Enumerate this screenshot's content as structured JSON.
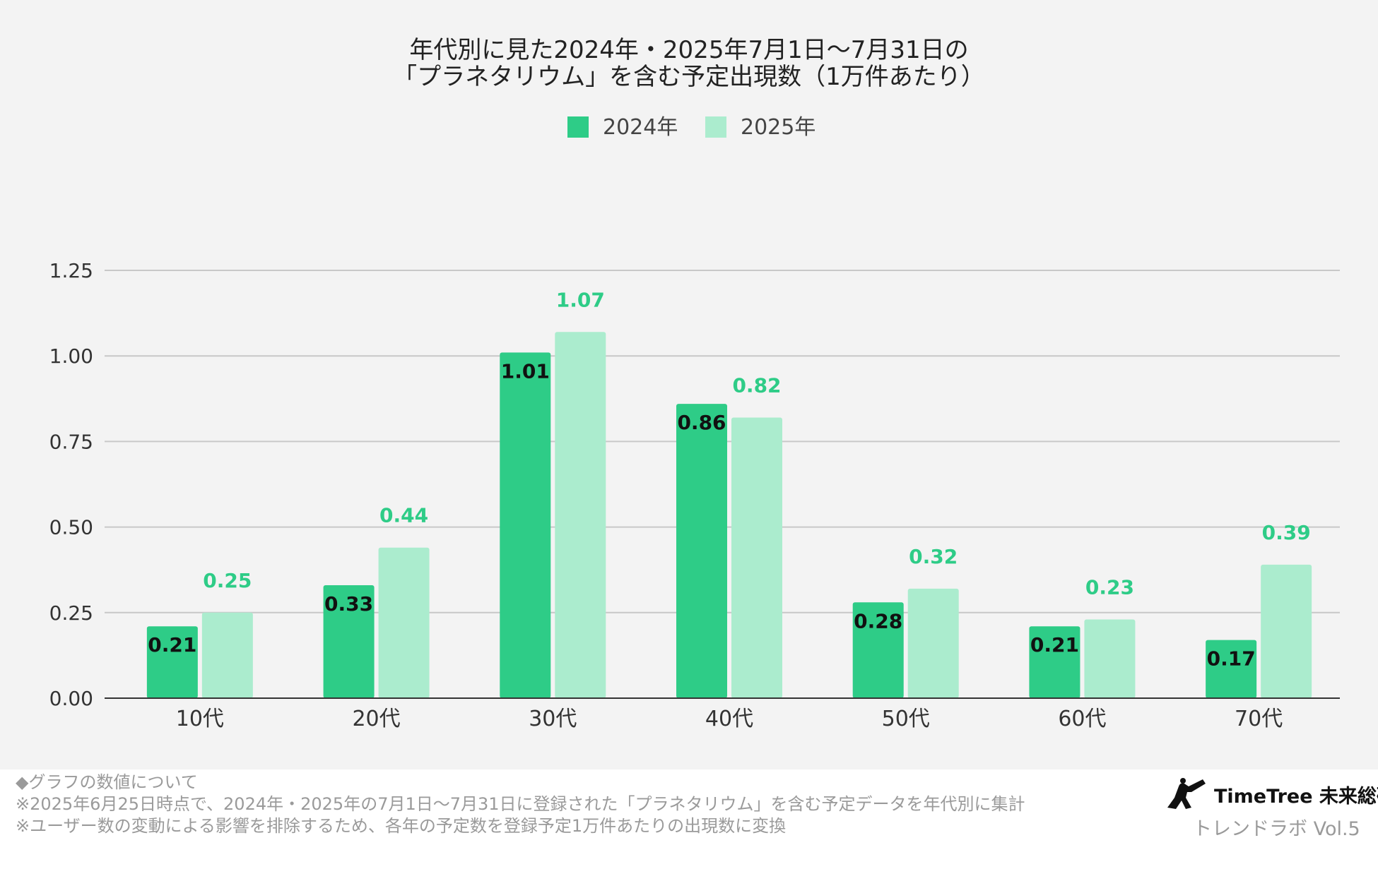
{
  "chart_data": {
    "type": "bar",
    "title": [
      "年代別に見た2024年・2025年7月1日〜7月31日の",
      "「プラネタリウム」を含む予定出現数（1万件あたり）"
    ],
    "categories": [
      "10代",
      "20代",
      "30代",
      "40代",
      "50代",
      "60代",
      "70代"
    ],
    "series": [
      {
        "name": "2024年",
        "color": "#2ecc87",
        "values": [
          0.21,
          0.33,
          1.01,
          0.86,
          0.28,
          0.21,
          0.17
        ],
        "labels": [
          "0.21",
          "0.33",
          "1.01",
          "0.86",
          "0.28",
          "0.21",
          "0.17"
        ]
      },
      {
        "name": "2025年",
        "color": "#abecce",
        "values": [
          0.25,
          0.44,
          1.07,
          0.82,
          0.32,
          0.23,
          0.39
        ],
        "labels": [
          "0.25",
          "0.44",
          "1.07",
          "0.82",
          "0.32",
          "0.23",
          "0.39"
        ]
      }
    ],
    "yticks": [
      "0.00",
      "0.25",
      "0.50",
      "0.75",
      "1.00",
      "1.25"
    ],
    "ylim": [
      0,
      1.25
    ],
    "xlabel": "",
    "ylabel": "",
    "grid": true,
    "legend": "top-center"
  },
  "notes": {
    "heading": "◆グラフの数値について",
    "line1": "※2025年6月25日時点で、2024年・2025年の7月1日〜7月31日に登録された「プラネタリウム」を含む予定データを年代別に集計",
    "line2": "※ユーザー数の変動による影響を排除するため、各年の予定数を登録予定1万件あたりの出現数に変換"
  },
  "brand": {
    "name": "TimeTree 未来総研",
    "sub": "トレンドラボ Vol.5",
    "icon": "telescope-person-icon"
  }
}
